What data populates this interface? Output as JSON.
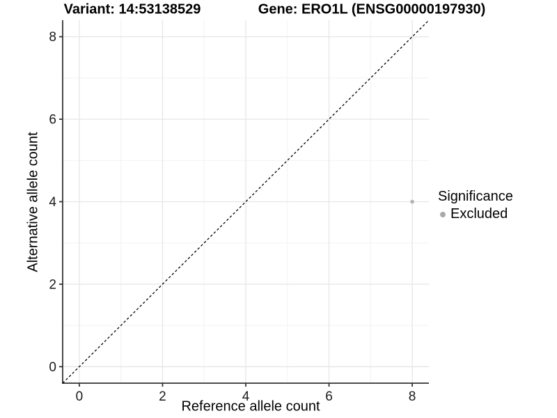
{
  "chart_data": {
    "type": "scatter",
    "titles": {
      "left": "Variant: 14:53138529",
      "right": "Gene: ERO1L (ENSG00000197930)"
    },
    "xlabel": "Reference allele count",
    "ylabel": "Alternative allele count",
    "xlim": [
      -0.4,
      8.4
    ],
    "ylim": [
      -0.4,
      8.4
    ],
    "x_breaks": [
      0,
      2,
      4,
      6,
      8
    ],
    "y_breaks": [
      0,
      2,
      4,
      6,
      8
    ],
    "x_minor_breaks": [
      1,
      3,
      5,
      7
    ],
    "y_minor_breaks": [
      1,
      3,
      5,
      7
    ],
    "grid": true,
    "identity_line": {
      "type": "dashed",
      "from": [
        -0.4,
        -0.4
      ],
      "to": [
        8.4,
        8.4
      ]
    },
    "series": [
      {
        "name": "Excluded",
        "points": [
          {
            "x": 8,
            "y": 4
          }
        ],
        "color": "#b3b3b3"
      }
    ],
    "legend": {
      "title": "Significance",
      "position": "right",
      "items": [
        {
          "label": "Excluded",
          "color": "#a9a9a9"
        }
      ]
    }
  },
  "colors": {
    "background": "#ffffff",
    "grid_major": "#e6e6e6",
    "grid_minor": "#f2f2f2",
    "axis_line": "#333333",
    "tick_text": "#1a1a1a",
    "identity_line": "#000000"
  }
}
